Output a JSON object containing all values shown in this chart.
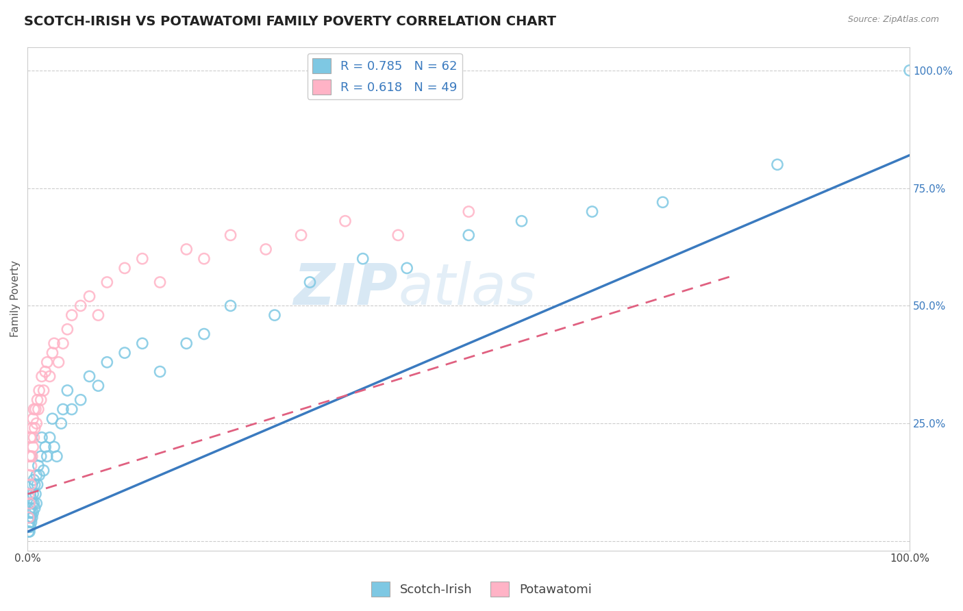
{
  "title": "SCOTCH-IRISH VS POTAWATOMI FAMILY POVERTY CORRELATION CHART",
  "source_text": "Source: ZipAtlas.com",
  "ylabel": "Family Poverty",
  "xlim": [
    0,
    1.0
  ],
  "ylim": [
    -0.02,
    1.05
  ],
  "R1": 0.785,
  "N1": 62,
  "R2": 0.618,
  "N2": 49,
  "blue_color": "#7ec8e3",
  "pink_color": "#ffb3c6",
  "blue_line_color": "#3a7abf",
  "pink_line_color": "#e06080",
  "text_color": "#3a7abf",
  "watermark_text": "ZIPatlas",
  "watermark_color": "#ddeeff",
  "title_fontsize": 14,
  "axis_label_fontsize": 11,
  "tick_fontsize": 11,
  "legend_fontsize": 13,
  "background_color": "#ffffff",
  "grid_color": "#cccccc",
  "scotch_irish_x": [
    0.001,
    0.001,
    0.001,
    0.002,
    0.002,
    0.002,
    0.002,
    0.003,
    0.003,
    0.003,
    0.003,
    0.004,
    0.004,
    0.004,
    0.005,
    0.005,
    0.005,
    0.006,
    0.006,
    0.007,
    0.007,
    0.008,
    0.008,
    0.009,
    0.01,
    0.01,
    0.011,
    0.012,
    0.013,
    0.015,
    0.016,
    0.018,
    0.02,
    0.022,
    0.025,
    0.028,
    0.03,
    0.033,
    0.038,
    0.04,
    0.045,
    0.05,
    0.06,
    0.07,
    0.08,
    0.09,
    0.11,
    0.13,
    0.15,
    0.18,
    0.2,
    0.23,
    0.28,
    0.32,
    0.38,
    0.43,
    0.5,
    0.56,
    0.64,
    0.72,
    0.85,
    1.0
  ],
  "scotch_irish_y": [
    0.02,
    0.03,
    0.05,
    0.02,
    0.04,
    0.06,
    0.08,
    0.03,
    0.05,
    0.07,
    0.1,
    0.04,
    0.06,
    0.09,
    0.05,
    0.08,
    0.12,
    0.06,
    0.1,
    0.08,
    0.13,
    0.07,
    0.12,
    0.1,
    0.08,
    0.14,
    0.12,
    0.16,
    0.14,
    0.18,
    0.22,
    0.15,
    0.2,
    0.18,
    0.22,
    0.26,
    0.2,
    0.18,
    0.25,
    0.28,
    0.32,
    0.28,
    0.3,
    0.35,
    0.33,
    0.38,
    0.4,
    0.42,
    0.36,
    0.42,
    0.44,
    0.5,
    0.48,
    0.55,
    0.6,
    0.58,
    0.65,
    0.68,
    0.7,
    0.72,
    0.8,
    1.0
  ],
  "potawatomi_x": [
    0.001,
    0.001,
    0.002,
    0.002,
    0.002,
    0.003,
    0.003,
    0.003,
    0.004,
    0.004,
    0.005,
    0.005,
    0.006,
    0.006,
    0.007,
    0.007,
    0.008,
    0.009,
    0.01,
    0.011,
    0.012,
    0.013,
    0.015,
    0.016,
    0.018,
    0.02,
    0.022,
    0.025,
    0.028,
    0.03,
    0.035,
    0.04,
    0.045,
    0.05,
    0.06,
    0.07,
    0.08,
    0.09,
    0.11,
    0.13,
    0.15,
    0.18,
    0.2,
    0.23,
    0.27,
    0.31,
    0.36,
    0.42,
    0.5
  ],
  "potawatomi_y": [
    0.05,
    0.1,
    0.08,
    0.14,
    0.18,
    0.12,
    0.18,
    0.22,
    0.16,
    0.22,
    0.18,
    0.24,
    0.2,
    0.26,
    0.22,
    0.28,
    0.24,
    0.28,
    0.25,
    0.3,
    0.28,
    0.32,
    0.3,
    0.35,
    0.32,
    0.36,
    0.38,
    0.35,
    0.4,
    0.42,
    0.38,
    0.42,
    0.45,
    0.48,
    0.5,
    0.52,
    0.48,
    0.55,
    0.58,
    0.6,
    0.55,
    0.62,
    0.6,
    0.65,
    0.62,
    0.65,
    0.68,
    0.65,
    0.7
  ],
  "blue_intercept": 0.02,
  "blue_slope": 0.8,
  "pink_intercept": 0.1,
  "pink_slope": 0.58
}
